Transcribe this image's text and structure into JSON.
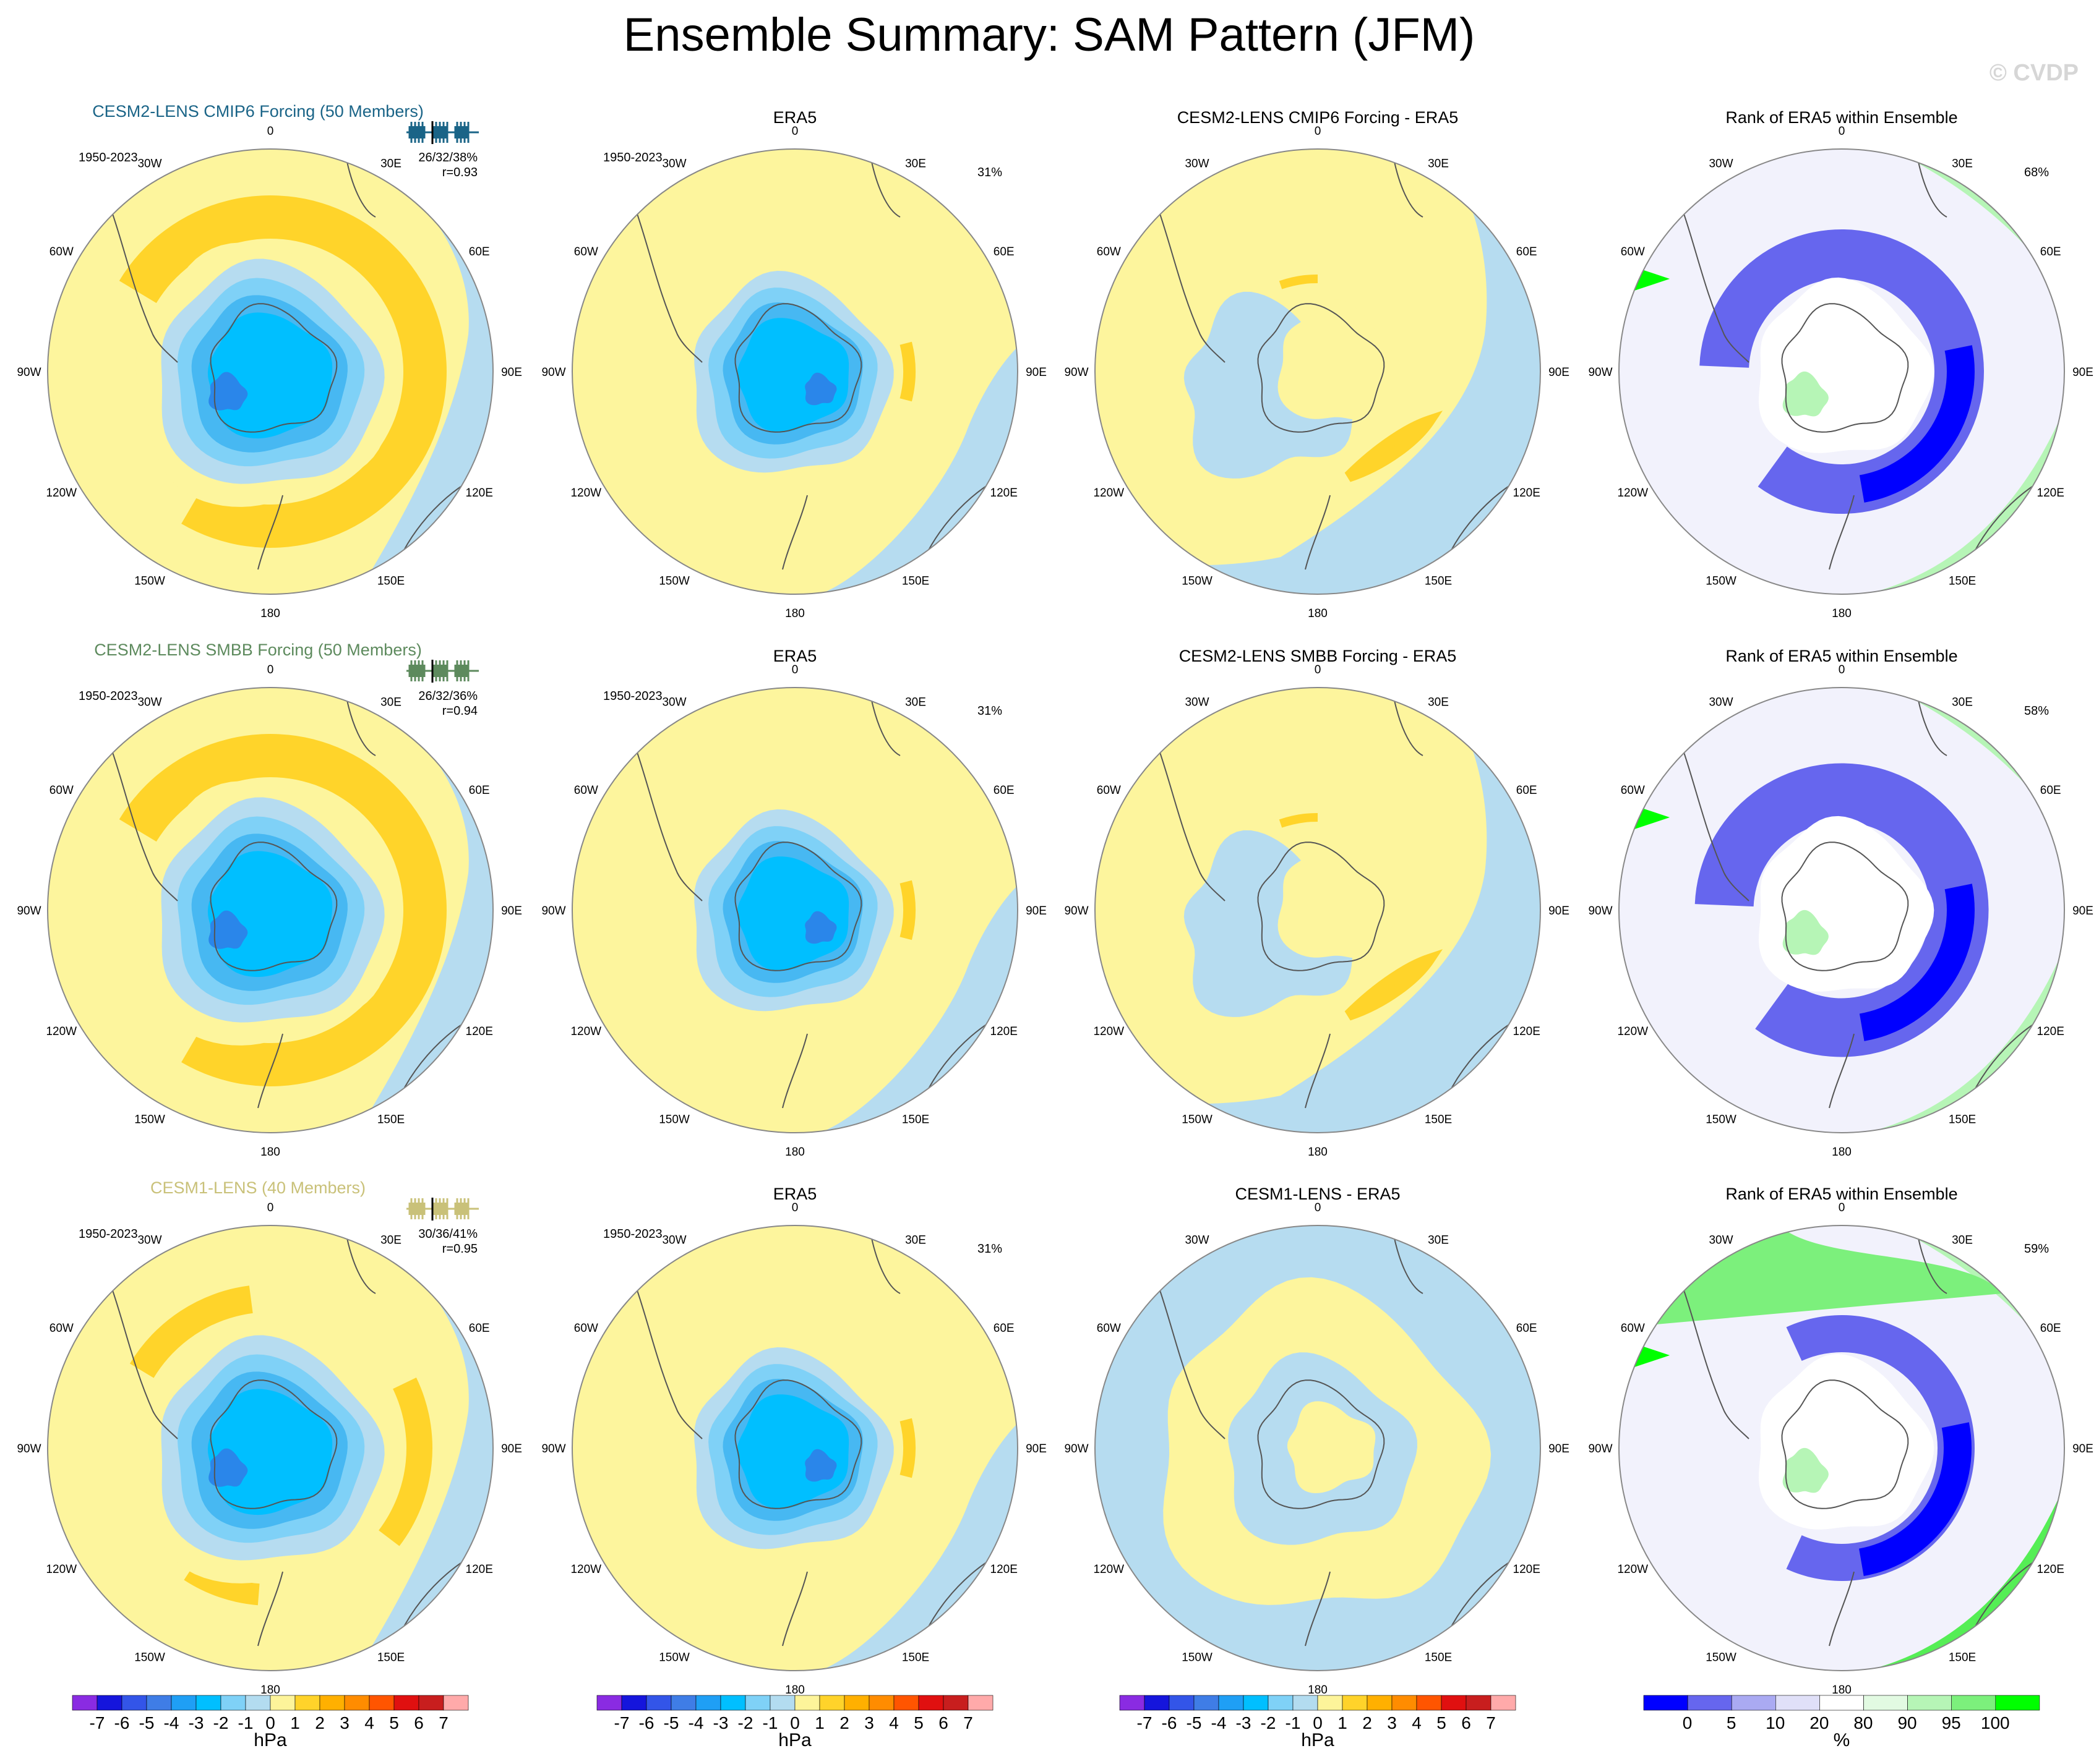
{
  "title": "Ensemble Summary: SAM Pattern (JFM)",
  "watermark": "© CVDP",
  "rows": [
    {
      "id": "cmip6",
      "model_title": "CESM2-LENS CMIP6 Forcing (50 Members)",
      "model_color": "#1a6487",
      "period": "1950-2023",
      "pct_stats": "26/32/38%",
      "corr": "r=0.93",
      "era5_title": "ERA5",
      "era5_period": "1950-2023",
      "era5_pct": "31%",
      "diff_title": "CESM2-LENS CMIP6 Forcing - ERA5",
      "rank_title": "Rank of ERA5 within Ensemble",
      "rank_pct": "68%"
    },
    {
      "id": "smbb",
      "model_title": "CESM2-LENS SMBB Forcing (50 Members)",
      "model_color": "#5d8a5d",
      "period": "1950-2023",
      "pct_stats": "26/32/36%",
      "corr": "r=0.94",
      "era5_title": "ERA5",
      "era5_period": "1950-2023",
      "era5_pct": "31%",
      "diff_title": "CESM2-LENS SMBB Forcing - ERA5",
      "rank_title": "Rank of ERA5 within Ensemble",
      "rank_pct": "58%"
    },
    {
      "id": "cesm1",
      "model_title": "CESM1-LENS (40 Members)",
      "model_color": "#c9c179",
      "period": "1950-2023",
      "pct_stats": "30/36/41%",
      "corr": "r=0.95",
      "era5_title": "ERA5",
      "era5_period": "1950-2023",
      "era5_pct": "31%",
      "diff_title": "CESM1-LENS - ERA5",
      "rank_title": "Rank of ERA5 within Ensemble",
      "rank_pct": "59%"
    }
  ],
  "longitude_labels": [
    "0",
    "30E",
    "60E",
    "90E",
    "120E",
    "150E",
    "180",
    "150W",
    "120W",
    "90W",
    "60W",
    "30W"
  ],
  "colorbars": {
    "hpa": {
      "unit": "hPa",
      "labels": [
        "-7",
        "-6",
        "-5",
        "-4",
        "-3",
        "-2",
        "-1",
        "0",
        "1",
        "2",
        "3",
        "4",
        "5",
        "6",
        "7"
      ],
      "colors": [
        "#8a2be2",
        "#1515dc",
        "#3355e8",
        "#3f7de6",
        "#1f9ff5",
        "#00bfff",
        "#7fd1f7",
        "#b3dcf0",
        "#fdf49a",
        "#ffd32a",
        "#ffb000",
        "#ff8c00",
        "#ff5500",
        "#e01010",
        "#c81e1e",
        "#ffaaaa"
      ]
    },
    "rank": {
      "unit": "%",
      "labels": [
        "0",
        "5",
        "10",
        "20",
        "80",
        "90",
        "95",
        "100"
      ],
      "colors": [
        "#0000ff",
        "#6666ee",
        "#aaaaf2",
        "#e0e0f8",
        "#ffffff",
        "#e2fae2",
        "#b6f5b6",
        "#7cf07c",
        "#00ff00"
      ]
    }
  },
  "chart_data": [
    {
      "type": "heatmap",
      "panel": "CESM2-LENS CMIP6 Forcing (50 Members)",
      "field": "SAM pattern regression (hPa)",
      "central_anomaly": -4,
      "ring_anomaly": 1,
      "stats": "26/32/38%",
      "pattern_correlation": 0.93
    },
    {
      "type": "heatmap",
      "panel": "ERA5",
      "field": "SAM pattern regression (hPa)",
      "central_anomaly": -4,
      "ring_anomaly": 0,
      "explained_variance": "31%"
    },
    {
      "type": "heatmap",
      "panel": "CESM2-LENS CMIP6 Forcing - ERA5",
      "field": "difference (hPa)",
      "range": [
        -1,
        1
      ]
    },
    {
      "type": "heatmap",
      "panel": "Rank of ERA5 within Ensemble",
      "field": "rank (%)",
      "range": [
        0,
        100
      ],
      "stat": "68%"
    },
    {
      "type": "heatmap",
      "panel": "CESM2-LENS SMBB Forcing (50 Members)",
      "field": "SAM pattern regression (hPa)",
      "central_anomaly": -4,
      "ring_anomaly": 1,
      "stats": "26/32/36%",
      "pattern_correlation": 0.94
    },
    {
      "type": "heatmap",
      "panel": "CESM2-LENS SMBB Forcing - ERA5",
      "field": "difference (hPa)",
      "range": [
        -1,
        1
      ]
    },
    {
      "type": "heatmap",
      "panel": "Rank of ERA5 within Ensemble",
      "field": "rank (%)",
      "range": [
        0,
        100
      ],
      "stat": "58%"
    },
    {
      "type": "heatmap",
      "panel": "CESM1-LENS (40 Members)",
      "field": "SAM pattern regression (hPa)",
      "central_anomaly": -4,
      "ring_anomaly": 1,
      "stats": "30/36/41%",
      "pattern_correlation": 0.95
    },
    {
      "type": "heatmap",
      "panel": "CESM1-LENS - ERA5",
      "field": "difference (hPa)",
      "range": [
        -1,
        1
      ]
    },
    {
      "type": "heatmap",
      "panel": "Rank of ERA5 within Ensemble",
      "field": "rank (%)",
      "range": [
        0,
        100
      ],
      "stat": "59%"
    }
  ]
}
